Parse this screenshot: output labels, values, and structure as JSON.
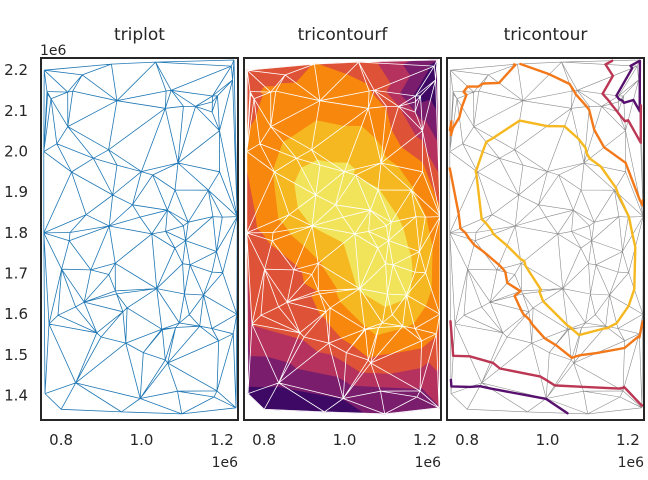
{
  "chart_data": [
    {
      "type": "triplot",
      "title": "triplot",
      "line_color": "#1f77b4",
      "xlim": [
        0.75,
        1.24
      ],
      "ylim": [
        1.34,
        2.23
      ],
      "xticks": [
        0.8,
        1.0,
        1.2
      ],
      "xtick_labels": [
        "0.8",
        "1.0",
        "1.2"
      ],
      "yticks": [
        1.4,
        1.5,
        1.6,
        1.7,
        1.8,
        1.9,
        2.0,
        2.1,
        2.2
      ],
      "ytick_labels": [
        "1.4",
        "1.5",
        "1.6",
        "1.7",
        "1.8",
        "1.9",
        "2.0",
        "2.1",
        "2.2"
      ],
      "x_offset_label": "1e6",
      "y_offset_label": "1e6"
    },
    {
      "type": "tricontourf",
      "title": "tricontourf",
      "colormap": "inferno",
      "level_colors": [
        "#3d0965",
        "#7a1d6d",
        "#b4325d",
        "#de5238",
        "#f8870e",
        "#f6b820",
        "#f1e45a"
      ],
      "xlim": [
        0.75,
        1.24
      ],
      "ylim": [
        1.34,
        2.23
      ],
      "xticks": [
        0.8,
        1.0,
        1.2
      ],
      "xtick_labels": [
        "0.8",
        "1.0",
        "1.2"
      ],
      "x_offset_label": "1e6"
    },
    {
      "type": "tricontour",
      "title": "tricontour",
      "colormap": "inferno",
      "xlim": [
        0.75,
        1.24
      ],
      "ylim": [
        1.34,
        2.23
      ],
      "xticks": [
        0.8,
        1.0,
        1.2
      ],
      "xtick_labels": [
        "0.8",
        "1.0",
        "1.2"
      ],
      "x_offset_label": "1e6"
    }
  ]
}
